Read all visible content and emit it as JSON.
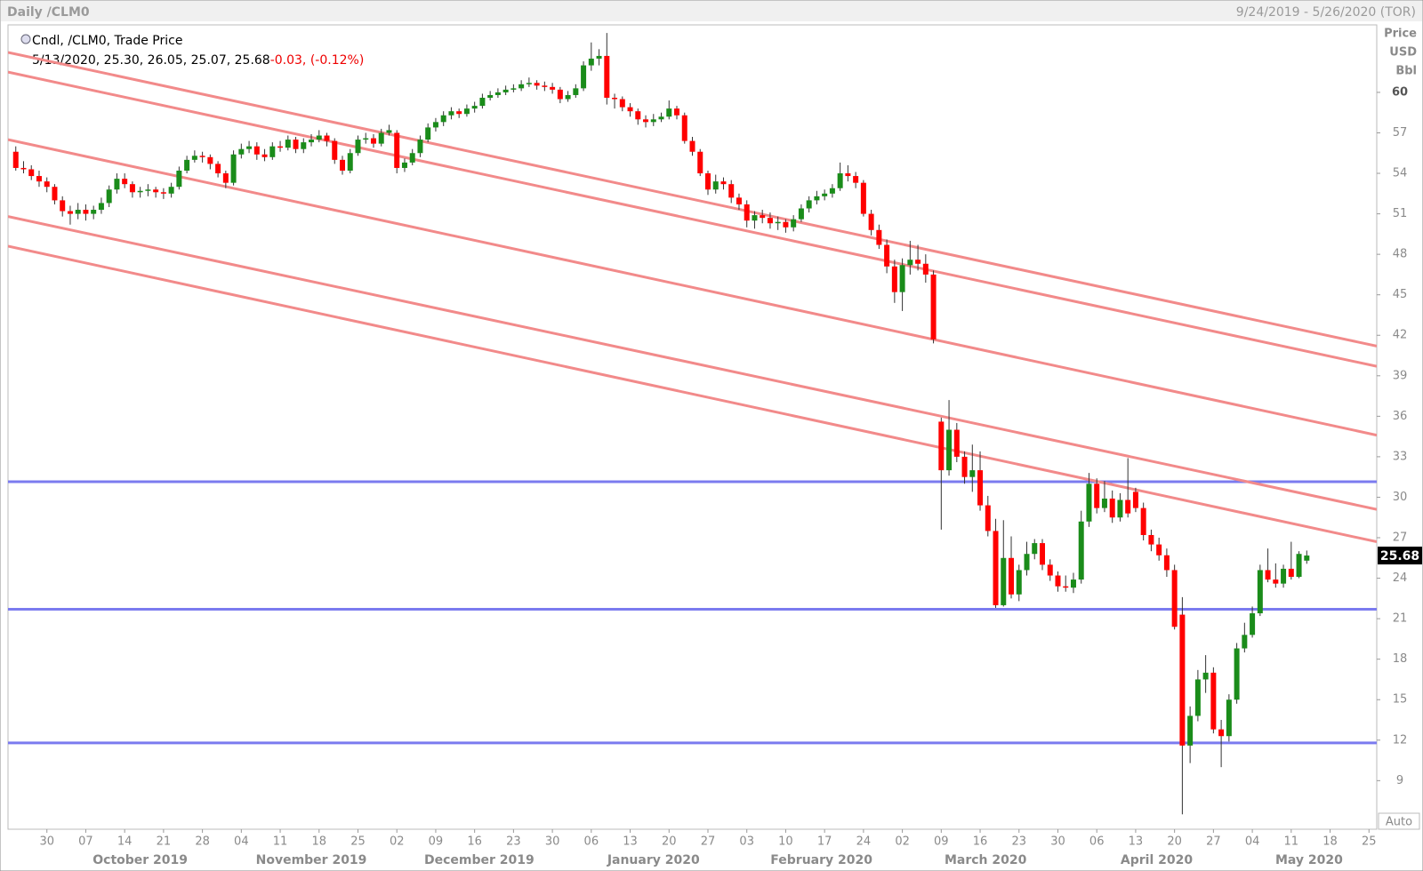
{
  "chart_data": {
    "type": "candlestick",
    "title": "Daily /CLM0",
    "subtitle": "9/24/2019 - 5/26/2020 (TOR)",
    "study": "Cndl, /CLM0, Trade Price",
    "info": "5/13/2020, 25.30, 26.05, 25.07, 25.68",
    "change": "-0.03, (-0.12%)",
    "axis_labels": [
      "Price",
      "USD",
      "Bbl"
    ],
    "auto_label": "Auto",
    "up_color": "#1a8c1a",
    "down_color": "#ff0000",
    "level_color": "#7b7bef",
    "channel_color": "#f28a8a",
    "ylim": [
      5.4,
      65.0
    ],
    "yticks": [
      9,
      12,
      15,
      18,
      21,
      24,
      27,
      30,
      33,
      36,
      39,
      42,
      45,
      48,
      51,
      54,
      57,
      60
    ],
    "xlim": [
      -1,
      175
    ],
    "xticks": [
      {
        "value": 4,
        "label": "30"
      },
      {
        "value": 9,
        "label": "07"
      },
      {
        "value": 14,
        "label": "14"
      },
      {
        "value": 19,
        "label": "21"
      },
      {
        "value": 24,
        "label": "28"
      },
      {
        "value": 29,
        "label": "04"
      },
      {
        "value": 34,
        "label": "11"
      },
      {
        "value": 39,
        "label": "18"
      },
      {
        "value": 44,
        "label": "25"
      },
      {
        "value": 49,
        "label": "02"
      },
      {
        "value": 54,
        "label": "09"
      },
      {
        "value": 59,
        "label": "16"
      },
      {
        "value": 64,
        "label": "23"
      },
      {
        "value": 69,
        "label": "30"
      },
      {
        "value": 74,
        "label": "06"
      },
      {
        "value": 79,
        "label": "13"
      },
      {
        "value": 84,
        "label": "20"
      },
      {
        "value": 89,
        "label": "27"
      },
      {
        "value": 94,
        "label": "03"
      },
      {
        "value": 99,
        "label": "10"
      },
      {
        "value": 104,
        "label": "17"
      },
      {
        "value": 109,
        "label": "24"
      },
      {
        "value": 114,
        "label": "02"
      },
      {
        "value": 119,
        "label": "09"
      },
      {
        "value": 124,
        "label": "16"
      },
      {
        "value": 129,
        "label": "23"
      },
      {
        "value": 134,
        "label": "30"
      },
      {
        "value": 139,
        "label": "06"
      },
      {
        "value": 144,
        "label": "13"
      },
      {
        "value": 149,
        "label": "20"
      },
      {
        "value": 154,
        "label": "27"
      },
      {
        "value": 159,
        "label": "04"
      },
      {
        "value": 164,
        "label": "11"
      },
      {
        "value": 169,
        "label": "18"
      },
      {
        "value": 174,
        "label": "25"
      }
    ],
    "months": [
      {
        "value": 16,
        "label": "October 2019"
      },
      {
        "value": 38,
        "label": "November 2019"
      },
      {
        "value": 59.6,
        "label": "December 2019"
      },
      {
        "value": 82,
        "label": "January 2020"
      },
      {
        "value": 103.6,
        "label": "February 2020"
      },
      {
        "value": 124.7,
        "label": "March 2020"
      },
      {
        "value": 146.7,
        "label": "April 2020"
      },
      {
        "value": 166.3,
        "label": "May 2020"
      }
    ],
    "levels": [
      31.15,
      21.7,
      11.8
    ],
    "channel_lines": [
      {
        "x": [
          -1,
          175
        ],
        "y": [
          62.96,
          41.2
        ]
      },
      {
        "x": [
          -1,
          175
        ],
        "y": [
          61.5,
          39.7
        ]
      },
      {
        "x": [
          -1,
          175
        ],
        "y": [
          56.5,
          34.6
        ]
      },
      {
        "x": [
          -1,
          175
        ],
        "y": [
          50.8,
          29.1
        ]
      },
      {
        "x": [
          -1,
          175
        ],
        "y": [
          48.6,
          26.7
        ]
      }
    ],
    "ohlc": [
      [
        55.6,
        56.0,
        54.2,
        54.4
      ],
      [
        54.4,
        54.9,
        54.0,
        54.3
      ],
      [
        54.3,
        54.6,
        53.5,
        53.8
      ],
      [
        53.8,
        54.2,
        53.0,
        53.4
      ],
      [
        53.4,
        53.7,
        52.6,
        53.0
      ],
      [
        53.0,
        53.2,
        51.7,
        52.0
      ],
      [
        52.0,
        52.3,
        50.8,
        51.2
      ],
      [
        51.2,
        51.6,
        50.2,
        51.0
      ],
      [
        51.0,
        51.8,
        50.6,
        51.3
      ],
      [
        51.3,
        51.7,
        50.5,
        51.0
      ],
      [
        51.0,
        51.6,
        50.6,
        51.3
      ],
      [
        51.3,
        52.2,
        51.0,
        51.8
      ],
      [
        51.8,
        53.1,
        51.5,
        52.8
      ],
      [
        52.8,
        54.0,
        52.5,
        53.6
      ],
      [
        53.6,
        54.0,
        52.9,
        53.2
      ],
      [
        53.2,
        53.4,
        52.2,
        52.6
      ],
      [
        52.6,
        53.0,
        52.2,
        52.7
      ],
      [
        52.7,
        53.2,
        52.3,
        52.8
      ],
      [
        52.8,
        53.0,
        52.2,
        52.6
      ],
      [
        52.6,
        52.9,
        52.1,
        52.5
      ],
      [
        52.5,
        53.3,
        52.2,
        53.0
      ],
      [
        53.0,
        54.5,
        52.8,
        54.2
      ],
      [
        54.2,
        55.3,
        54.0,
        55.0
      ],
      [
        55.0,
        55.7,
        54.8,
        55.3
      ],
      [
        55.3,
        55.6,
        54.8,
        55.2
      ],
      [
        55.2,
        55.4,
        54.3,
        54.7
      ],
      [
        54.7,
        54.9,
        53.7,
        54.0
      ],
      [
        54.0,
        54.2,
        52.9,
        53.3
      ],
      [
        53.3,
        55.7,
        53.1,
        55.4
      ],
      [
        55.4,
        56.2,
        55.1,
        55.8
      ],
      [
        55.8,
        56.4,
        55.5,
        56.0
      ],
      [
        56.0,
        56.3,
        55.0,
        55.4
      ],
      [
        55.4,
        55.8,
        54.9,
        55.2
      ],
      [
        55.2,
        56.3,
        55.0,
        56.0
      ],
      [
        56.0,
        56.4,
        55.6,
        55.9
      ],
      [
        55.9,
        56.8,
        55.7,
        56.5
      ],
      [
        56.5,
        56.7,
        55.5,
        55.8
      ],
      [
        55.8,
        56.6,
        55.5,
        56.3
      ],
      [
        56.3,
        56.9,
        56.0,
        56.5
      ],
      [
        56.5,
        57.2,
        56.3,
        56.8
      ],
      [
        56.8,
        57.0,
        56.0,
        56.4
      ],
      [
        56.4,
        56.6,
        54.7,
        55.0
      ],
      [
        55.0,
        55.3,
        53.9,
        54.2
      ],
      [
        54.2,
        55.8,
        54.0,
        55.5
      ],
      [
        55.5,
        56.8,
        55.3,
        56.5
      ],
      [
        56.5,
        57.0,
        56.2,
        56.6
      ],
      [
        56.6,
        56.9,
        55.9,
        56.2
      ],
      [
        56.2,
        57.3,
        56.0,
        57.0
      ],
      [
        57.0,
        57.6,
        56.8,
        57.2
      ],
      [
        57.0,
        57.2,
        54.0,
        54.4
      ],
      [
        54.4,
        55.1,
        54.1,
        54.8
      ],
      [
        54.8,
        55.8,
        54.6,
        55.5
      ],
      [
        55.5,
        56.8,
        55.2,
        56.5
      ],
      [
        56.5,
        57.7,
        56.3,
        57.4
      ],
      [
        57.4,
        58.1,
        57.1,
        57.8
      ],
      [
        57.8,
        58.6,
        57.5,
        58.3
      ],
      [
        58.3,
        58.9,
        58.0,
        58.6
      ],
      [
        58.6,
        58.8,
        58.1,
        58.4
      ],
      [
        58.4,
        59.1,
        58.2,
        58.8
      ],
      [
        58.8,
        59.3,
        58.5,
        59.0
      ],
      [
        59.0,
        59.9,
        58.8,
        59.6
      ],
      [
        59.6,
        60.1,
        59.4,
        59.8
      ],
      [
        59.8,
        60.3,
        59.6,
        60.0
      ],
      [
        60.0,
        60.5,
        59.8,
        60.2
      ],
      [
        60.2,
        60.6,
        60.0,
        60.3
      ],
      [
        60.3,
        60.9,
        60.1,
        60.6
      ],
      [
        60.6,
        61.1,
        60.4,
        60.7
      ],
      [
        60.7,
        60.9,
        60.2,
        60.5
      ],
      [
        60.5,
        60.8,
        60.1,
        60.4
      ],
      [
        60.4,
        60.7,
        59.9,
        60.2
      ],
      [
        60.2,
        60.4,
        59.2,
        59.5
      ],
      [
        59.5,
        60.1,
        59.3,
        59.8
      ],
      [
        59.8,
        60.6,
        59.6,
        60.3
      ],
      [
        60.3,
        62.3,
        60.1,
        62.0
      ],
      [
        62.0,
        63.7,
        61.6,
        62.5
      ],
      [
        62.5,
        63.2,
        62.0,
        62.7
      ],
      [
        62.7,
        64.4,
        59.1,
        59.6
      ],
      [
        59.6,
        59.9,
        58.8,
        59.5
      ],
      [
        59.5,
        59.7,
        58.6,
        58.9
      ],
      [
        58.9,
        59.2,
        58.2,
        58.6
      ],
      [
        58.6,
        58.8,
        57.6,
        58.0
      ],
      [
        58.0,
        58.3,
        57.4,
        57.8
      ],
      [
        57.8,
        58.4,
        57.5,
        58.0
      ],
      [
        58.0,
        58.5,
        57.8,
        58.2
      ],
      [
        58.2,
        59.4,
        58.0,
        58.8
      ],
      [
        58.8,
        59.0,
        58.0,
        58.3
      ],
      [
        58.3,
        58.5,
        56.2,
        56.4
      ],
      [
        56.4,
        56.7,
        55.3,
        55.6
      ],
      [
        55.6,
        55.8,
        53.8,
        54.0
      ],
      [
        54.0,
        54.2,
        52.4,
        52.8
      ],
      [
        52.8,
        53.9,
        52.5,
        53.4
      ],
      [
        53.4,
        53.7,
        52.8,
        53.2
      ],
      [
        53.2,
        53.5,
        51.8,
        52.2
      ],
      [
        52.2,
        52.5,
        51.3,
        51.7
      ],
      [
        51.7,
        52.0,
        50.0,
        50.5
      ],
      [
        50.5,
        51.2,
        49.9,
        50.9
      ],
      [
        50.9,
        51.3,
        50.3,
        50.7
      ],
      [
        50.7,
        51.1,
        49.9,
        50.3
      ],
      [
        50.3,
        50.8,
        49.8,
        50.4
      ],
      [
        50.4,
        50.6,
        49.6,
        50.0
      ],
      [
        50.0,
        50.9,
        49.7,
        50.6
      ],
      [
        50.6,
        51.7,
        50.4,
        51.4
      ],
      [
        51.4,
        52.3,
        51.1,
        52.0
      ],
      [
        52.0,
        52.7,
        51.7,
        52.3
      ],
      [
        52.3,
        52.8,
        52.0,
        52.5
      ],
      [
        52.5,
        53.2,
        52.2,
        52.9
      ],
      [
        52.9,
        54.8,
        52.7,
        54.0
      ],
      [
        54.0,
        54.6,
        53.4,
        53.8
      ],
      [
        53.8,
        54.1,
        52.9,
        53.3
      ],
      [
        53.3,
        53.5,
        50.8,
        51.0
      ],
      [
        51.0,
        51.3,
        49.4,
        49.8
      ],
      [
        49.8,
        50.2,
        48.4,
        48.7
      ],
      [
        48.7,
        49.1,
        46.6,
        47.1
      ],
      [
        47.1,
        47.6,
        44.4,
        45.2
      ],
      [
        45.2,
        47.7,
        43.8,
        47.2
      ],
      [
        47.2,
        49.0,
        46.5,
        47.6
      ],
      [
        47.6,
        48.7,
        46.8,
        47.3
      ],
      [
        47.3,
        48.0,
        45.9,
        46.5
      ],
      [
        46.5,
        46.8,
        41.4,
        41.7
      ],
      [
        35.6,
        35.9,
        27.6,
        32.0
      ],
      [
        32.0,
        37.2,
        31.6,
        35.0
      ],
      [
        35.0,
        35.5,
        32.6,
        33.0
      ],
      [
        33.0,
        33.4,
        31.0,
        31.5
      ],
      [
        31.5,
        33.9,
        30.4,
        32.0
      ],
      [
        32.0,
        33.4,
        29.0,
        29.4
      ],
      [
        29.4,
        30.1,
        27.1,
        27.5
      ],
      [
        27.5,
        28.4,
        21.8,
        22.0
      ],
      [
        22.0,
        28.3,
        21.9,
        25.5
      ],
      [
        25.5,
        27.1,
        22.5,
        22.8
      ],
      [
        22.8,
        25.0,
        22.3,
        24.6
      ],
      [
        24.6,
        26.7,
        24.2,
        25.8
      ],
      [
        25.8,
        26.9,
        25.4,
        26.6
      ],
      [
        26.6,
        26.9,
        24.6,
        25.0
      ],
      [
        25.0,
        25.4,
        23.8,
        24.2
      ],
      [
        24.2,
        24.5,
        23.0,
        23.4
      ],
      [
        23.4,
        24.2,
        23.0,
        23.3
      ],
      [
        23.3,
        24.4,
        22.9,
        23.9
      ],
      [
        23.9,
        29.0,
        23.6,
        28.2
      ],
      [
        28.2,
        31.8,
        27.8,
        31.0
      ],
      [
        31.0,
        31.4,
        28.8,
        29.2
      ],
      [
        29.2,
        31.2,
        28.9,
        29.9
      ],
      [
        29.9,
        30.5,
        28.1,
        28.5
      ],
      [
        28.5,
        30.3,
        28.2,
        29.8
      ],
      [
        29.8,
        32.9,
        28.5,
        28.8
      ],
      [
        30.4,
        30.7,
        28.9,
        29.2
      ],
      [
        29.2,
        29.6,
        26.8,
        27.2
      ],
      [
        27.2,
        27.6,
        26.0,
        26.5
      ],
      [
        26.5,
        27.0,
        25.3,
        25.7
      ],
      [
        25.7,
        26.2,
        24.1,
        24.6
      ],
      [
        24.6,
        25.0,
        20.2,
        20.4
      ],
      [
        21.3,
        22.6,
        6.5,
        11.6
      ],
      [
        11.6,
        14.5,
        10.3,
        13.8
      ],
      [
        13.8,
        17.2,
        13.4,
        16.5
      ],
      [
        16.5,
        18.3,
        15.5,
        17.0
      ],
      [
        17.0,
        17.4,
        12.5,
        12.8
      ],
      [
        12.8,
        13.5,
        10.0,
        12.3
      ],
      [
        12.3,
        15.4,
        11.9,
        15.0
      ],
      [
        15.0,
        19.2,
        14.7,
        18.8
      ],
      [
        18.8,
        20.7,
        18.5,
        19.8
      ],
      [
        19.8,
        21.9,
        19.6,
        21.4
      ],
      [
        21.4,
        25.0,
        21.2,
        24.6
      ],
      [
        24.6,
        26.2,
        23.7,
        23.9
      ],
      [
        23.9,
        25.1,
        23.3,
        23.6
      ],
      [
        23.6,
        25.0,
        23.3,
        24.7
      ],
      [
        24.7,
        26.7,
        23.9,
        24.1
      ],
      [
        24.1,
        26.0,
        24.0,
        25.8
      ],
      [
        25.3,
        26.05,
        25.07,
        25.68
      ]
    ]
  }
}
